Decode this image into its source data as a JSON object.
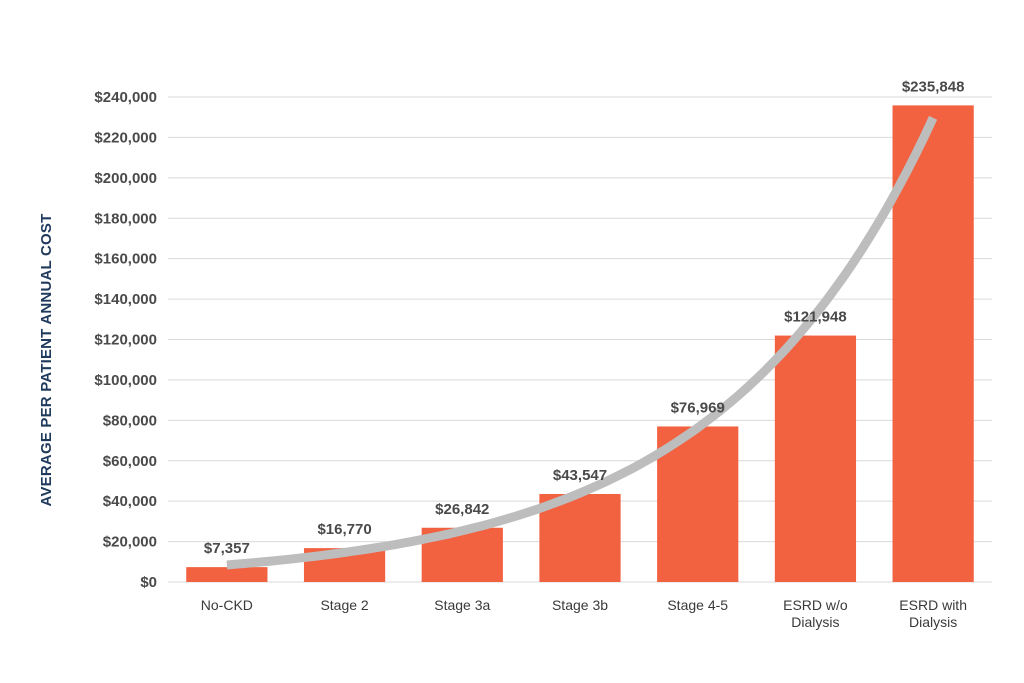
{
  "chart_data": {
    "type": "bar",
    "title": "",
    "xlabel": "",
    "ylabel": "AVERAGE PER PATIENT ANNUAL COST",
    "categories": [
      [
        "No-CKD"
      ],
      [
        "Stage 2"
      ],
      [
        "Stage 3a"
      ],
      [
        "Stage 3b"
      ],
      [
        "Stage 4-5"
      ],
      [
        "ESRD w/o",
        "Dialysis"
      ],
      [
        "ESRD with",
        "Dialysis"
      ]
    ],
    "values": [
      7357,
      16770,
      26842,
      43547,
      76969,
      121948,
      235848
    ],
    "data_labels": [
      "$7,357",
      "$16,770",
      "$26,842",
      "$43,547",
      "$76,969",
      "$121,948",
      "$235,848"
    ],
    "ylim": [
      0,
      240000
    ],
    "yticks": [
      0,
      20000,
      40000,
      60000,
      80000,
      100000,
      120000,
      140000,
      160000,
      180000,
      200000,
      220000,
      240000
    ],
    "ytick_labels": [
      "$0",
      "$20,000",
      "$40,000",
      "$60,000",
      "$80,000",
      "$100,000",
      "$120,000",
      "$140,000",
      "$160,000",
      "$180,000",
      "$200,000",
      "$220,000",
      "$240,000"
    ],
    "grid": true,
    "trendline": true,
    "colors": {
      "bar": "#f26140",
      "trend": "#bdbdbd",
      "grid": "#d9d9d9",
      "ylabel": "#1f3a5c",
      "text": "#4a4a4a"
    }
  }
}
